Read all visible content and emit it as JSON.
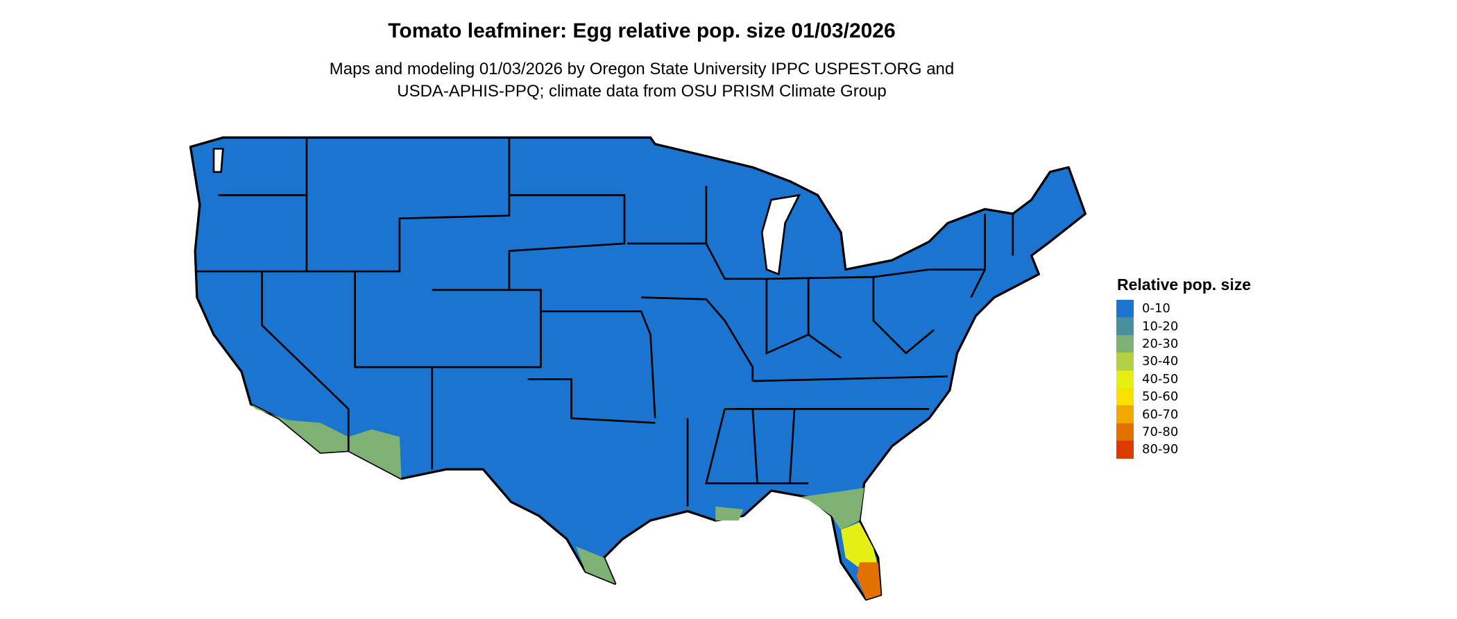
{
  "title": "Tomato leafminer: Egg relative pop. size 01/03/2026",
  "subtitle_line1": "Maps and modeling 01/03/2026 by Oregon State University IPPC USPEST.ORG and",
  "subtitle_line2": "USDA-APHIS-PPQ; climate data from OSU PRISM Climate Group",
  "legend": {
    "title": "Relative pop. size",
    "items": [
      {
        "label": "0-10",
        "color": "#1b75d0"
      },
      {
        "label": "10-20",
        "color": "#4a8f9c"
      },
      {
        "label": "20-30",
        "color": "#7fb074"
      },
      {
        "label": "30-40",
        "color": "#b3d044"
      },
      {
        "label": "40-50",
        "color": "#e5ef13"
      },
      {
        "label": "50-60",
        "color": "#f8e000"
      },
      {
        "label": "60-70",
        "color": "#efa900"
      },
      {
        "label": "70-80",
        "color": "#e27100"
      },
      {
        "label": "80-90",
        "color": "#dc3a00"
      }
    ]
  }
}
